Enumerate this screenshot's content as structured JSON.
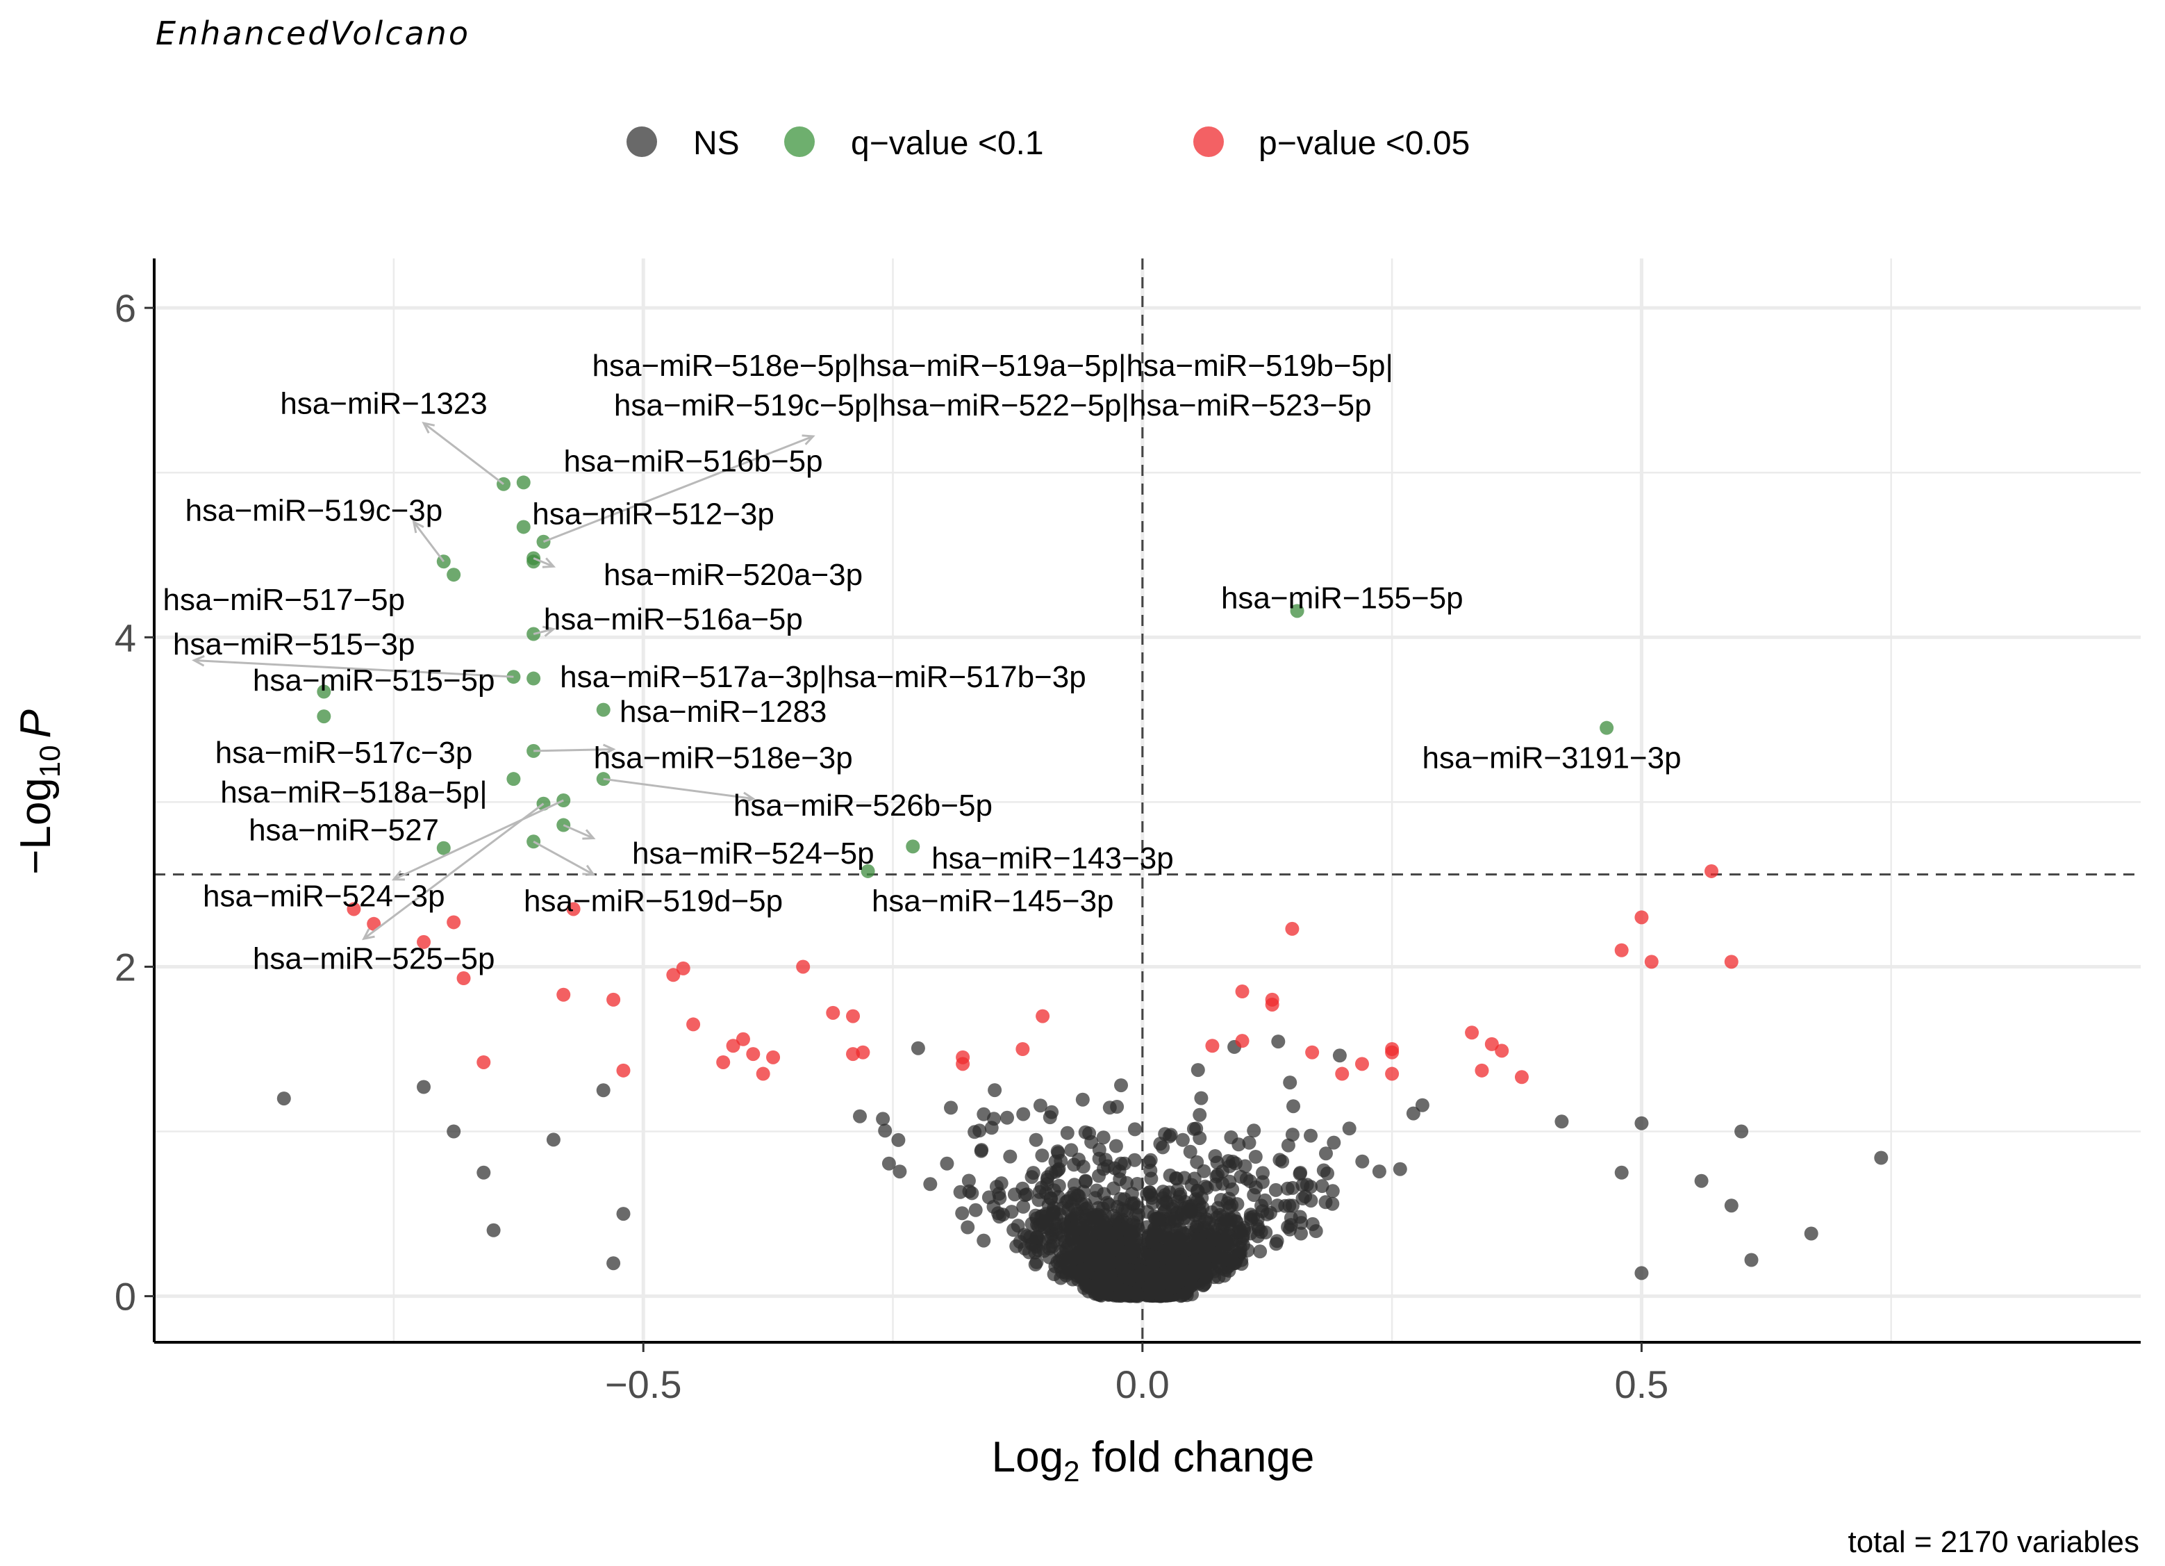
{
  "chart_data": {
    "type": "scatter",
    "caption": "EnhancedVolcano",
    "xlabel": {
      "base": "Log",
      "sub": "2",
      "rest": " fold change"
    },
    "ylabel": {
      "prefix": "−Log",
      "sub": "10",
      "italic": "P"
    },
    "footer": "total = 2170 variables",
    "xlim": [
      -0.99,
      1.0
    ],
    "ylim": [
      -0.28,
      6.3
    ],
    "x_ticks": [
      -0.5,
      0.0,
      0.5
    ],
    "x_tick_labels": [
      "−0.5",
      "0.0",
      "0.5"
    ],
    "y_ticks": [
      0,
      2,
      4,
      6
    ],
    "y_tick_labels": [
      "0",
      "2",
      "4",
      "6"
    ],
    "thresholds": {
      "fold_change_line": 0.0,
      "p_line": 2.56
    },
    "legend": {
      "position": "top",
      "entries": [
        {
          "label": "NS",
          "color": "#444444"
        },
        {
          "label": "q−value <0.1",
          "color": "#4a9b4a"
        },
        {
          "label": "p−value <0.05",
          "color": "#f0393d"
        }
      ]
    },
    "colors": {
      "ns": "#2b2b2b",
      "q": "#3d8c3d",
      "p": "#ef2b2e",
      "guide": "#444444",
      "grid": "#ebebeb",
      "arrow": "#b9b9b9"
    },
    "background_ns": {
      "count": 2111,
      "seed": 20170,
      "outliers": [
        [
          -0.86,
          1.2
        ],
        [
          -0.72,
          1.27
        ],
        [
          -0.65,
          0.4
        ],
        [
          -0.66,
          0.75
        ],
        [
          -0.69,
          1.0
        ],
        [
          -0.59,
          0.95
        ],
        [
          -0.54,
          1.25
        ],
        [
          -0.52,
          0.5
        ],
        [
          -0.53,
          0.2
        ],
        [
          0.74,
          0.84
        ],
        [
          0.67,
          0.38
        ],
        [
          0.61,
          0.22
        ],
        [
          0.6,
          1.0
        ],
        [
          0.56,
          0.7
        ],
        [
          0.5,
          1.05
        ],
        [
          0.48,
          0.75
        ],
        [
          0.59,
          0.55
        ],
        [
          0.42,
          1.06
        ],
        [
          0.5,
          0.14
        ]
      ]
    },
    "p_points": [
      [
        -0.79,
        2.35
      ],
      [
        -0.77,
        2.26
      ],
      [
        -0.72,
        2.15
      ],
      [
        -0.69,
        2.27
      ],
      [
        -0.68,
        1.93
      ],
      [
        -0.66,
        1.42
      ],
      [
        -0.58,
        1.83
      ],
      [
        -0.57,
        2.35
      ],
      [
        -0.53,
        1.8
      ],
      [
        -0.52,
        1.37
      ],
      [
        -0.46,
        1.99
      ],
      [
        -0.45,
        1.65
      ],
      [
        -0.41,
        1.52
      ],
      [
        -0.42,
        1.42
      ],
      [
        -0.4,
        1.56
      ],
      [
        -0.39,
        1.47
      ],
      [
        -0.38,
        1.35
      ],
      [
        -0.37,
        1.45
      ],
      [
        -0.34,
        2.0
      ],
      [
        -0.31,
        1.72
      ],
      [
        -0.29,
        1.7
      ],
      [
        -0.28,
        1.48
      ],
      [
        -0.29,
        1.47
      ],
      [
        -0.18,
        1.45
      ],
      [
        -0.18,
        1.41
      ],
      [
        -0.12,
        1.5
      ],
      [
        -0.1,
        1.7
      ],
      [
        0.07,
        1.52
      ],
      [
        0.1,
        1.55
      ],
      [
        0.1,
        1.85
      ],
      [
        0.13,
        1.8
      ],
      [
        0.13,
        1.77
      ],
      [
        0.15,
        2.23
      ],
      [
        0.17,
        1.48
      ],
      [
        0.2,
        1.35
      ],
      [
        0.22,
        1.41
      ],
      [
        0.25,
        1.5
      ],
      [
        0.25,
        1.48
      ],
      [
        0.33,
        1.6
      ],
      [
        0.35,
        1.53
      ],
      [
        0.36,
        1.49
      ],
      [
        0.34,
        1.37
      ],
      [
        0.38,
        1.33
      ],
      [
        0.57,
        2.58
      ],
      [
        0.5,
        2.3
      ],
      [
        0.48,
        2.1
      ],
      [
        0.51,
        2.03
      ],
      [
        0.59,
        2.03
      ],
      [
        0.25,
        1.35
      ],
      [
        -0.47,
        1.95
      ]
    ],
    "labeled_points": [
      {
        "label": "hsa−miR−1323",
        "x": -0.64,
        "y": 4.93,
        "lx": -0.76,
        "ly": 5.42,
        "ax": -0.72,
        "ay": 5.3
      },
      {
        "label": "hsa−miR−518e−5p|hsa−miR−519a−5p|hsa−miR−519b−5p|",
        "x": -0.62,
        "y": 4.94,
        "lx": -0.15,
        "ly": 5.65,
        "ax": null,
        "ay": null
      },
      {
        "label": "hsa−miR−519c−5p|hsa−miR−522−5p|hsa−miR−523−5p",
        "x": -0.6,
        "y": 4.58,
        "lx": -0.15,
        "ly": 5.41,
        "ax": -0.33,
        "ay": 5.22
      },
      {
        "label": "hsa−miR−516b−5p",
        "x": -0.61,
        "y": 4.46,
        "lx": -0.45,
        "ly": 5.07,
        "ax": null,
        "ay": null
      },
      {
        "label": "hsa−miR−519c−3p",
        "x": -0.7,
        "y": 4.46,
        "lx": -0.83,
        "ly": 4.77,
        "ax": -0.73,
        "ay": 4.7
      },
      {
        "label": "hsa−miR−512−3p",
        "x": -0.62,
        "y": 4.67,
        "lx": -0.49,
        "ly": 4.75,
        "ax": null,
        "ay": null
      },
      {
        "label": "hsa−miR−520a−3p",
        "x": -0.61,
        "y": 4.48,
        "lx": -0.41,
        "ly": 4.38,
        "ax": -0.59,
        "ay": 4.43
      },
      {
        "label": "hsa−miR−517−5p",
        "x": -0.69,
        "y": 4.38,
        "lx": -0.86,
        "ly": 4.23,
        "ax": null,
        "ay": null
      },
      {
        "label": "hsa−miR−516a−5p",
        "x": -0.61,
        "y": 4.02,
        "lx": -0.47,
        "ly": 4.11,
        "ax": -0.59,
        "ay": 4.05
      },
      {
        "label": "hsa−miR−155−5p",
        "x": 0.155,
        "y": 4.16,
        "lx": 0.2,
        "ly": 4.24,
        "ax": null,
        "ay": null
      },
      {
        "label": "hsa−miR−515−3p",
        "x": -0.63,
        "y": 3.76,
        "lx": -0.85,
        "ly": 3.96,
        "ax": -0.95,
        "ay": 3.86
      },
      {
        "label": "hsa−miR−515−5p",
        "x": -0.82,
        "y": 3.67,
        "lx": -0.77,
        "ly": 3.74,
        "ax": null,
        "ay": null
      },
      {
        "label": "hsa−miR−517a−3p|hsa−miR−517b−3p",
        "x": -0.61,
        "y": 3.75,
        "lx": -0.32,
        "ly": 3.76,
        "ax": null,
        "ay": null
      },
      {
        "label": "hsa−miR−1283",
        "x": -0.54,
        "y": 3.56,
        "lx": -0.42,
        "ly": 3.55,
        "ax": null,
        "ay": null
      },
      {
        "label": "hsa−miR−517c−3p",
        "x": -0.82,
        "y": 3.52,
        "lx": -0.8,
        "ly": 3.3,
        "ax": null,
        "ay": null
      },
      {
        "label": "hsa−miR−518e−3p",
        "x": -0.61,
        "y": 3.31,
        "lx": -0.42,
        "ly": 3.27,
        "ax": -0.53,
        "ay": 3.32
      },
      {
        "label": "hsa−miR−3191−3p",
        "x": 0.465,
        "y": 3.45,
        "lx": 0.41,
        "ly": 3.27,
        "ax": null,
        "ay": null
      },
      {
        "label": "hsa−miR−518a−5p|",
        "x": -0.63,
        "y": 3.14,
        "lx": -0.79,
        "ly": 3.06,
        "ax": null,
        "ay": null
      },
      {
        "label": "hsa−miR−526b−5p",
        "x": -0.54,
        "y": 3.14,
        "lx": -0.28,
        "ly": 2.98,
        "ax": -0.39,
        "ay": 3.02
      },
      {
        "label": "hsa−miR−527",
        "x": -0.58,
        "y": 3.01,
        "lx": -0.8,
        "ly": 2.83,
        "ax": -0.75,
        "ay": 2.53
      },
      {
        "label": "hsa−miR−524−5p",
        "x": -0.58,
        "y": 2.86,
        "lx": -0.39,
        "ly": 2.69,
        "ax": -0.55,
        "ay": 2.78
      },
      {
        "label": "hsa−miR−143−3p",
        "x": -0.23,
        "y": 2.73,
        "lx": -0.09,
        "ly": 2.66,
        "ax": null,
        "ay": null
      },
      {
        "label": "hsa−miR−524−3p",
        "x": -0.7,
        "y": 2.72,
        "lx": -0.82,
        "ly": 2.43,
        "ax": null,
        "ay": null
      },
      {
        "label": "hsa−miR−519d−5p",
        "x": -0.61,
        "y": 2.76,
        "lx": -0.49,
        "ly": 2.4,
        "ax": -0.55,
        "ay": 2.56
      },
      {
        "label": "hsa−miR−145−3p",
        "x": -0.275,
        "y": 2.58,
        "lx": -0.15,
        "ly": 2.4,
        "ax": null,
        "ay": null
      },
      {
        "label": "hsa−miR−525−5p",
        "x": -0.6,
        "y": 2.99,
        "lx": -0.77,
        "ly": 2.05,
        "ax": -0.78,
        "ay": 2.17
      }
    ]
  }
}
